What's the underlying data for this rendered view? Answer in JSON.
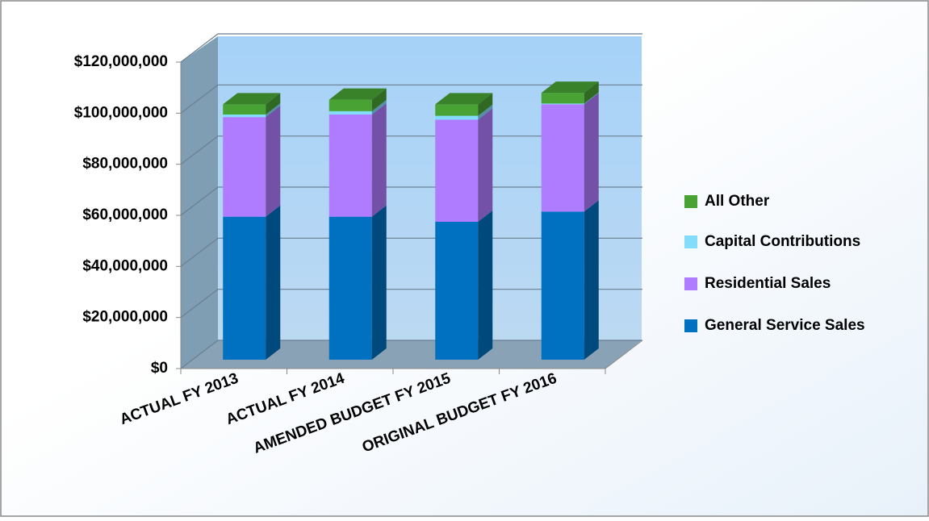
{
  "chart_data": {
    "type": "bar3d_stacked",
    "categories": [
      "ACTUAL FY 2013",
      "ACTUAL FY 2014",
      "AMENDED BUDGET FY 2015",
      "ORIGINAL BUDGET FY 2016"
    ],
    "series": [
      {
        "name": "General Service Sales",
        "color": "#0070c0",
        "values": [
          56000000,
          56000000,
          54000000,
          58000000
        ]
      },
      {
        "name": "Residential Sales",
        "color": "#b07cff",
        "values": [
          39000000,
          40000000,
          40000000,
          42000000
        ]
      },
      {
        "name": "Capital Contributions",
        "color": "#82dcfa",
        "values": [
          1000000,
          1300000,
          1500000,
          300000
        ]
      },
      {
        "name": "All Other",
        "color": "#48a234",
        "values": [
          4000000,
          4500000,
          4500000,
          4200000
        ]
      }
    ],
    "ylim": [
      0,
      120000000
    ],
    "yticks": [
      {
        "value": 0,
        "label": "$0"
      },
      {
        "value": 20000000,
        "label": "$20,000,000"
      },
      {
        "value": 40000000,
        "label": "$40,000,000"
      },
      {
        "value": 60000000,
        "label": "$60,000,000"
      },
      {
        "value": 80000000,
        "label": "$80,000,000"
      },
      {
        "value": 100000000,
        "label": "$100,000,000"
      },
      {
        "value": 120000000,
        "label": "$120,000,000"
      }
    ],
    "grid": true,
    "legend": "right"
  }
}
